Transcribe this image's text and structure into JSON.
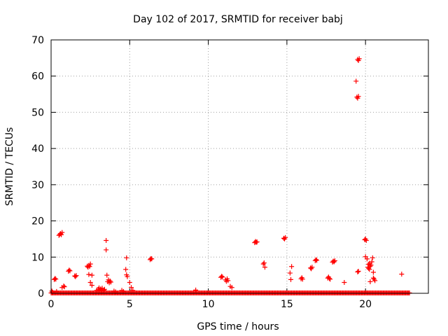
{
  "chart_data": {
    "type": "scatter",
    "title": "Day 102 of 2017, SRMTID for receiver babj",
    "xlabel": "GPS time / hours",
    "ylabel": "SRMTID / TECUs",
    "xlim": [
      0,
      24
    ],
    "ylim": [
      0,
      70
    ],
    "xticks": [
      0,
      5,
      10,
      15,
      20
    ],
    "yticks": [
      0,
      10,
      20,
      30,
      40,
      50,
      60,
      70
    ],
    "xtick_labels": [
      "0",
      "5",
      "10",
      "15",
      "20"
    ],
    "ytick_labels": [
      "0",
      "10",
      "20",
      "30",
      "40",
      "50",
      "60",
      "70"
    ],
    "grid": true,
    "marker": "+",
    "series_color": "#ff0000",
    "baseline": {
      "y": 0.1,
      "x_start": 0.0,
      "x_end": 22.8,
      "step": 0.06
    },
    "points": [
      [
        0.05,
        0.6
      ],
      [
        0.1,
        0.3
      ],
      [
        0.2,
        3.8
      ],
      [
        0.25,
        4.1
      ],
      [
        0.3,
        3.9
      ],
      [
        0.35,
        0.5
      ],
      [
        0.5,
        16.0
      ],
      [
        0.55,
        16.3
      ],
      [
        0.6,
        16.5
      ],
      [
        0.65,
        16.2
      ],
      [
        0.7,
        16.8
      ],
      [
        0.7,
        1.6
      ],
      [
        0.8,
        2.0
      ],
      [
        0.85,
        1.8
      ],
      [
        1.1,
        6.1
      ],
      [
        1.15,
        6.4
      ],
      [
        1.2,
        6.2
      ],
      [
        1.5,
        4.8
      ],
      [
        1.55,
        4.6
      ],
      [
        1.6,
        4.9
      ],
      [
        2.3,
        7.5
      ],
      [
        2.35,
        7.2
      ],
      [
        2.4,
        7.7
      ],
      [
        2.45,
        7.4
      ],
      [
        2.5,
        8.1
      ],
      [
        2.4,
        5.2
      ],
      [
        2.6,
        5.0
      ],
      [
        2.5,
        3.0
      ],
      [
        2.6,
        2.2
      ],
      [
        2.9,
        0.8
      ],
      [
        3.0,
        1.1
      ],
      [
        3.05,
        1.5
      ],
      [
        3.1,
        0.9
      ],
      [
        3.15,
        1.2
      ],
      [
        3.2,
        0.7
      ],
      [
        3.25,
        1.4
      ],
      [
        3.35,
        0.9
      ],
      [
        3.4,
        1.1
      ],
      [
        3.5,
        14.6
      ],
      [
        3.5,
        12.0
      ],
      [
        3.55,
        5.0
      ],
      [
        3.6,
        3.2
      ],
      [
        3.65,
        3.7
      ],
      [
        3.7,
        2.9
      ],
      [
        3.75,
        3.4
      ],
      [
        3.8,
        3.1
      ],
      [
        4.0,
        0.6
      ],
      [
        4.1,
        0.4
      ],
      [
        4.5,
        0.8
      ],
      [
        4.6,
        0.5
      ],
      [
        4.8,
        9.8
      ],
      [
        4.75,
        6.6
      ],
      [
        4.8,
        5.1
      ],
      [
        4.85,
        4.6
      ],
      [
        5.0,
        3.0
      ],
      [
        5.1,
        1.6
      ],
      [
        5.2,
        0.8
      ],
      [
        6.3,
        9.3
      ],
      [
        6.35,
        9.6
      ],
      [
        6.4,
        9.5
      ],
      [
        9.2,
        0.9
      ],
      [
        10.8,
        4.4
      ],
      [
        10.85,
        4.7
      ],
      [
        10.9,
        4.5
      ],
      [
        11.1,
        3.7
      ],
      [
        11.15,
        3.3
      ],
      [
        11.2,
        4.0
      ],
      [
        11.25,
        3.5
      ],
      [
        11.4,
        1.9
      ],
      [
        11.5,
        1.6
      ],
      [
        12.95,
        14.0
      ],
      [
        13.0,
        14.3
      ],
      [
        13.05,
        14.1
      ],
      [
        13.1,
        14.2
      ],
      [
        13.5,
        8.1
      ],
      [
        13.55,
        8.4
      ],
      [
        13.6,
        7.2
      ],
      [
        14.8,
        15.2
      ],
      [
        14.85,
        15.0
      ],
      [
        14.9,
        15.4
      ],
      [
        15.3,
        7.4
      ],
      [
        15.2,
        5.6
      ],
      [
        15.25,
        3.8
      ],
      [
        15.9,
        4.0
      ],
      [
        15.95,
        4.3
      ],
      [
        16.0,
        3.9
      ],
      [
        16.5,
        7.0
      ],
      [
        16.55,
        6.8
      ],
      [
        16.6,
        7.2
      ],
      [
        16.8,
        9.0
      ],
      [
        16.85,
        9.3
      ],
      [
        16.9,
        9.1
      ],
      [
        17.6,
        4.2
      ],
      [
        17.65,
        4.5
      ],
      [
        17.7,
        4.1
      ],
      [
        17.75,
        3.9
      ],
      [
        17.9,
        8.6
      ],
      [
        17.95,
        8.9
      ],
      [
        18.0,
        8.7
      ],
      [
        18.05,
        9.0
      ],
      [
        18.65,
        3.0
      ],
      [
        19.4,
        58.6
      ],
      [
        19.45,
        54.2
      ],
      [
        19.5,
        53.9
      ],
      [
        19.55,
        54.4
      ],
      [
        19.5,
        64.6
      ],
      [
        19.55,
        64.3
      ],
      [
        19.6,
        64.8
      ],
      [
        19.5,
        5.9
      ],
      [
        19.55,
        6.1
      ],
      [
        19.95,
        14.8
      ],
      [
        20.0,
        15.0
      ],
      [
        20.05,
        14.6
      ],
      [
        20.0,
        10.1
      ],
      [
        20.1,
        9.5
      ],
      [
        20.2,
        8.0
      ],
      [
        20.25,
        8.3
      ],
      [
        20.3,
        7.5
      ],
      [
        20.15,
        7.2
      ],
      [
        20.2,
        6.9
      ],
      [
        20.25,
        6.6
      ],
      [
        20.35,
        7.8
      ],
      [
        20.4,
        8.7
      ],
      [
        20.45,
        9.8
      ],
      [
        20.5,
        5.8
      ],
      [
        20.5,
        4.2
      ],
      [
        20.55,
        3.9
      ],
      [
        20.6,
        3.5
      ],
      [
        20.3,
        3.2
      ],
      [
        22.3,
        5.3
      ]
    ]
  }
}
